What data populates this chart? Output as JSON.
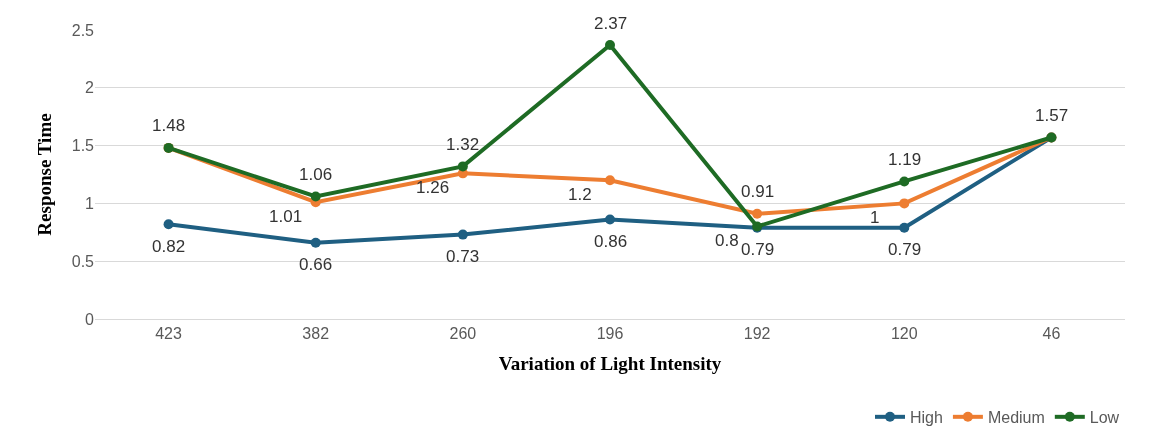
{
  "chart_data": {
    "type": "line",
    "xlabel": "Variation of Light Intensity",
    "ylabel": "Response Time",
    "categories": [
      "423",
      "382",
      "260",
      "196",
      "192",
      "120",
      "46"
    ],
    "series": [
      {
        "name": "High",
        "color": "#1f5f82",
        "values": [
          0.82,
          0.66,
          0.73,
          0.86,
          0.79,
          0.79,
          1.57
        ],
        "value_labels": [
          "0.82",
          "0.66",
          "0.73",
          "0.86",
          "0.79",
          "0.79",
          null
        ]
      },
      {
        "name": "Medium",
        "color": "#ed7d31",
        "values": [
          1.48,
          1.01,
          1.26,
          1.2,
          0.91,
          1,
          1.57
        ],
        "value_labels": [
          null,
          "1.01",
          "1.26",
          "1.2",
          "0.91",
          "1",
          null
        ]
      },
      {
        "name": "Low",
        "color": "#1e6b24",
        "values": [
          1.48,
          1.06,
          1.32,
          2.37,
          0.8,
          1.19,
          1.57
        ],
        "value_labels": [
          "1.48",
          "1.06",
          "1.32",
          "2.37",
          "0.8",
          "1.19",
          "1.57"
        ]
      }
    ],
    "ylim": [
      0,
      2.5
    ],
    "yticks": [
      0,
      0.5,
      1,
      1.5,
      2,
      2.5
    ],
    "grid": "y",
    "legend": "bottom right",
    "marker": "circle",
    "line_style": "solid"
  }
}
